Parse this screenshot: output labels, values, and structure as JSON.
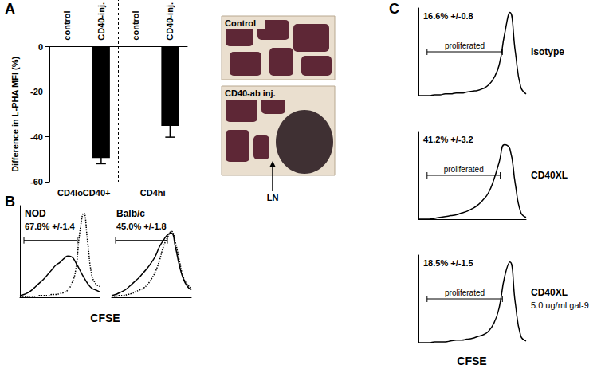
{
  "panel_labels": [
    "A",
    "B",
    "C"
  ],
  "chart_data": [
    {
      "type": "bar",
      "ylabel": "Difference in L-PHA MFI (%)",
      "categories": [
        "control",
        "CD40-inj.",
        "control",
        "CD40-inj."
      ],
      "groups": [
        "CD4loCD40+",
        "CD4hi"
      ],
      "values": [
        0,
        -49.5,
        0,
        -35.2
      ],
      "errors": [
        0,
        2.5,
        0,
        5.0
      ],
      "color": "#000000",
      "ylim": [
        -60,
        0
      ],
      "yticks": [
        -60,
        -40,
        -20,
        0
      ],
      "grid": false
    },
    {
      "type": "line",
      "title": "NOD",
      "annotation": "67.8% +/-1.4",
      "xlabel": "CFSE",
      "x": [
        0,
        5,
        10,
        15,
        20,
        25,
        30,
        35,
        40,
        45,
        50,
        55,
        60,
        65,
        70,
        75,
        80,
        85,
        90,
        95,
        100
      ],
      "series": [
        {
          "color": "#000000",
          "line_style": "solid",
          "values": [
            2,
            3,
            5,
            8,
            12,
            16,
            20,
            25,
            30,
            35,
            38,
            42,
            45,
            44,
            38,
            30,
            22,
            15,
            10,
            8,
            6
          ]
        },
        {
          "color": "#000000",
          "line_style": "dotted",
          "values": [
            0,
            0,
            1,
            1,
            1,
            2,
            2,
            2,
            3,
            3,
            4,
            5,
            8,
            15,
            30,
            70,
            92,
            60,
            25,
            15,
            12
          ]
        }
      ],
      "gate": {
        "range": [
          5,
          72
        ]
      },
      "xlim": [
        0,
        100
      ],
      "ylim": [
        0,
        100
      ],
      "tick_labels": false,
      "grid": false
    },
    {
      "type": "line",
      "title": "Balb/c",
      "annotation": "45.0% +/-1.8",
      "x": [
        0,
        5,
        10,
        15,
        20,
        25,
        30,
        35,
        40,
        45,
        50,
        55,
        60,
        65,
        70,
        75,
        80,
        85,
        90,
        95,
        100
      ],
      "series": [
        {
          "color": "#000000",
          "line_style": "solid",
          "values": [
            2,
            3,
            5,
            7,
            10,
            14,
            18,
            22,
            27,
            32,
            38,
            45,
            55,
            62,
            68,
            70,
            55,
            35,
            20,
            12,
            8
          ]
        },
        {
          "color": "#000000",
          "line_style": "dotted",
          "values": [
            1,
            1,
            2,
            2,
            3,
            4,
            6,
            8,
            10,
            14,
            20,
            28,
            40,
            55,
            65,
            72,
            60,
            40,
            22,
            14,
            10
          ]
        }
      ],
      "gate": {
        "range": [
          5,
          70
        ]
      },
      "xlim": [
        0,
        100
      ],
      "ylim": [
        0,
        100
      ],
      "tick_labels": false,
      "grid": false
    },
    {
      "type": "line",
      "title": "Isotype",
      "annotation": "16.6% +/-0.8",
      "x": [
        0,
        5,
        10,
        15,
        20,
        25,
        30,
        35,
        40,
        45,
        50,
        55,
        60,
        65,
        70,
        75,
        80,
        85,
        90,
        95,
        100
      ],
      "series": [
        {
          "color": "#000000",
          "line_style": "solid",
          "values": [
            0,
            0,
            0,
            1,
            1,
            2,
            2,
            3,
            3,
            4,
            5,
            6,
            8,
            12,
            20,
            35,
            70,
            95,
            50,
            10,
            2
          ]
        }
      ],
      "gate": {
        "range": [
          8,
          78
        ],
        "label": "proliferated"
      },
      "xlim": [
        0,
        100
      ],
      "ylim": [
        0,
        100
      ],
      "tick_labels": false,
      "grid": false
    },
    {
      "type": "line",
      "title": "CD40XL",
      "annotation": "41.2% +/-3.2",
      "x": [
        0,
        5,
        10,
        15,
        20,
        25,
        30,
        35,
        40,
        45,
        50,
        55,
        60,
        65,
        70,
        75,
        80,
        85,
        90,
        95,
        100
      ],
      "series": [
        {
          "color": "#000000",
          "line_style": "solid",
          "values": [
            0,
            0,
            0,
            1,
            2,
            3,
            4,
            5,
            7,
            9,
            12,
            16,
            22,
            30,
            45,
            65,
            85,
            80,
            40,
            8,
            2
          ]
        }
      ],
      "gate": {
        "range": [
          8,
          76
        ],
        "label": "proliferated"
      },
      "xlim": [
        0,
        100
      ],
      "ylim": [
        0,
        100
      ],
      "tick_labels": false,
      "grid": false
    },
    {
      "type": "line",
      "title": "CD40XL",
      "subtitle": "5.0 ug/ml gal-9",
      "annotation": "18.5% +/-1.5",
      "xlabel": "CFSE",
      "x": [
        0,
        5,
        10,
        15,
        20,
        25,
        30,
        35,
        40,
        45,
        50,
        55,
        60,
        65,
        70,
        75,
        80,
        85,
        90,
        95,
        100
      ],
      "series": [
        {
          "color": "#000000",
          "line_style": "solid",
          "values": [
            0,
            0,
            0,
            1,
            1,
            1,
            2,
            3,
            3,
            4,
            5,
            7,
            9,
            13,
            22,
            40,
            75,
            92,
            45,
            8,
            2
          ]
        }
      ],
      "gate": {
        "range": [
          8,
          78
        ],
        "label": "proliferated"
      },
      "xlim": [
        0,
        100
      ],
      "ylim": [
        0,
        100
      ],
      "tick_labels": false,
      "grid": false
    }
  ],
  "images": [
    {
      "label": "Control"
    },
    {
      "label": "CD40-ab inj.",
      "annotation": "LN"
    }
  ]
}
